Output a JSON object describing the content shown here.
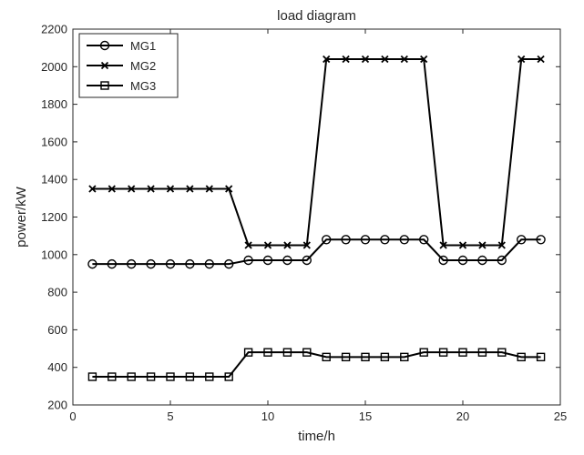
{
  "chart_data": {
    "type": "line",
    "title": "load diagram",
    "xlabel": "time/h",
    "ylabel": "power/kW",
    "xlim": [
      0,
      25
    ],
    "ylim": [
      200,
      2200
    ],
    "xticks": [
      0,
      5,
      10,
      15,
      20,
      25
    ],
    "yticks": [
      200,
      400,
      600,
      800,
      1000,
      1200,
      1400,
      1600,
      1800,
      2000,
      2200
    ],
    "grid": false,
    "legend_position": "top-left",
    "x": [
      1,
      2,
      3,
      4,
      5,
      6,
      7,
      8,
      9,
      10,
      11,
      12,
      13,
      14,
      15,
      16,
      17,
      18,
      19,
      20,
      21,
      22,
      23,
      24
    ],
    "series": [
      {
        "name": "MG1",
        "marker": "circle",
        "color": "#000000",
        "values": [
          950,
          950,
          950,
          950,
          950,
          950,
          950,
          950,
          970,
          970,
          970,
          970,
          1080,
          1080,
          1080,
          1080,
          1080,
          1080,
          970,
          970,
          970,
          970,
          1080,
          1080
        ]
      },
      {
        "name": "MG2",
        "marker": "x",
        "color": "#000000",
        "values": [
          1350,
          1350,
          1350,
          1350,
          1350,
          1350,
          1350,
          1350,
          1050,
          1050,
          1050,
          1050,
          2040,
          2040,
          2040,
          2040,
          2040,
          2040,
          1050,
          1050,
          1050,
          1050,
          2040,
          2040
        ]
      },
      {
        "name": "MG3",
        "marker": "square",
        "color": "#000000",
        "values": [
          350,
          350,
          350,
          350,
          350,
          350,
          350,
          350,
          480,
          480,
          480,
          480,
          455,
          455,
          455,
          455,
          455,
          480,
          480,
          480,
          480,
          480,
          455,
          455
        ]
      }
    ]
  }
}
